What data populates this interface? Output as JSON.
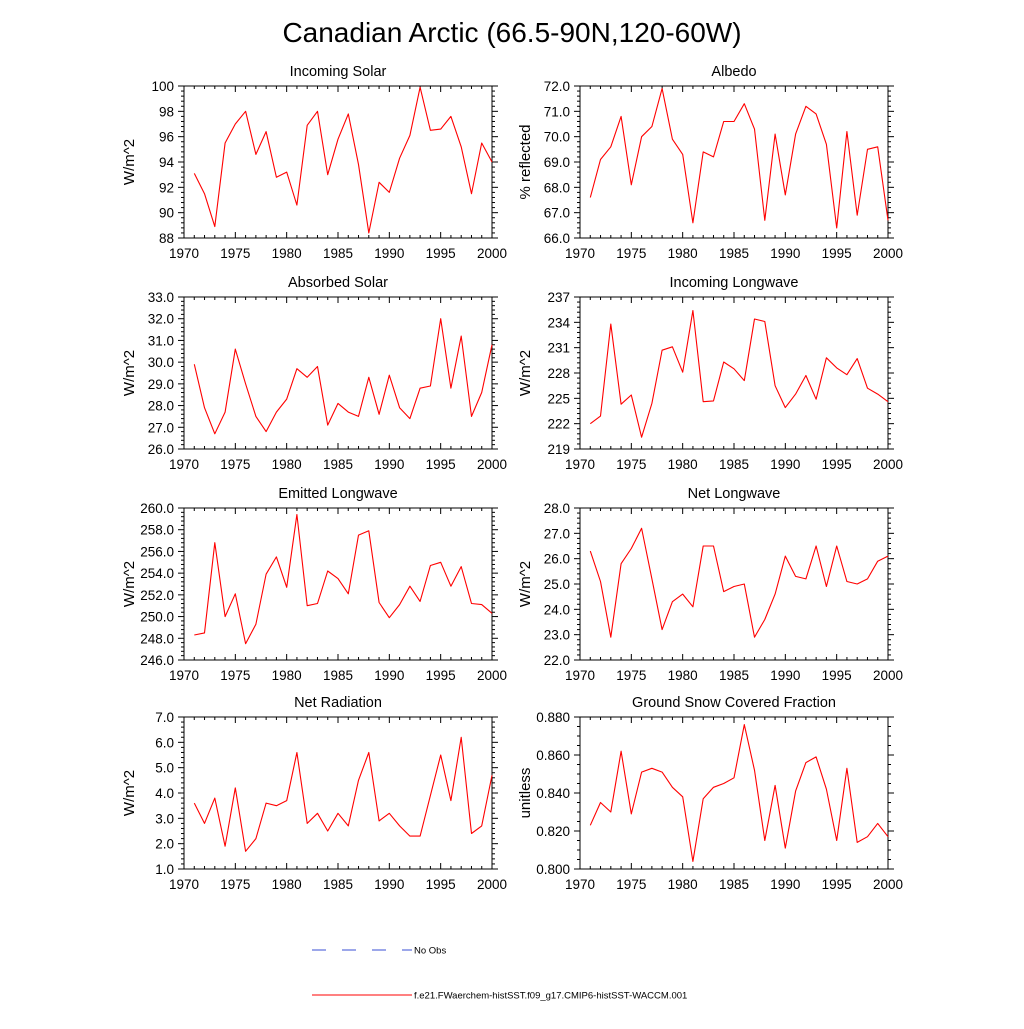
{
  "figure": {
    "title": "Canadian Arctic (66.5-90N,120-60W)",
    "legend": [
      {
        "label": "No Obs",
        "color": "#3a4fd6",
        "style": "dashed"
      },
      {
        "label": "f.e21.FWaerchem-histSST.f09_g17.CMIP6-histSST-WACCM.001",
        "color": "#ff0000",
        "style": "solid"
      }
    ]
  },
  "chart_data": [
    {
      "type": "line",
      "title": "Incoming Solar",
      "ylabel": "W/m^2",
      "xlim": [
        1970,
        2000
      ],
      "ylim": [
        88,
        100
      ],
      "xticks": [
        "1970",
        "1975",
        "1980",
        "1985",
        "1990",
        "1995",
        "2000"
      ],
      "yticks": [
        "88",
        "90",
        "92",
        "94",
        "96",
        "98",
        "100"
      ],
      "x": [
        1971,
        1972,
        1973,
        1974,
        1975,
        1976,
        1977,
        1978,
        1979,
        1980,
        1981,
        1982,
        1983,
        1984,
        1985,
        1986,
        1987,
        1988,
        1989,
        1990,
        1991,
        1992,
        1993,
        1994,
        1995,
        1996,
        1997,
        1998,
        1999,
        2000
      ],
      "series": [
        {
          "color": "#ff0000",
          "values": [
            93.1,
            91.5,
            88.9,
            95.5,
            97.0,
            98.0,
            94.6,
            96.4,
            92.8,
            93.2,
            90.6,
            96.9,
            98.0,
            93.0,
            95.8,
            97.8,
            93.8,
            88.4,
            92.4,
            91.6,
            94.3,
            96.1,
            99.9,
            96.5,
            96.6,
            97.6,
            95.2,
            91.5,
            95.5,
            94.0
          ]
        }
      ]
    },
    {
      "type": "line",
      "title": "Albedo",
      "ylabel": "% reflected",
      "xlim": [
        1970,
        2000
      ],
      "ylim": [
        66,
        72
      ],
      "xticks": [
        "1970",
        "1975",
        "1980",
        "1985",
        "1990",
        "1995",
        "2000"
      ],
      "yticks": [
        "66.0",
        "67.0",
        "68.0",
        "69.0",
        "70.0",
        "71.0",
        "72.0"
      ],
      "x": [
        1971,
        1972,
        1973,
        1974,
        1975,
        1976,
        1977,
        1978,
        1979,
        1980,
        1981,
        1982,
        1983,
        1984,
        1985,
        1986,
        1987,
        1988,
        1989,
        1990,
        1991,
        1992,
        1993,
        1994,
        1995,
        1996,
        1997,
        1998,
        1999,
        2000
      ],
      "series": [
        {
          "color": "#ff0000",
          "values": [
            67.6,
            69.1,
            69.6,
            70.8,
            68.1,
            70.0,
            70.4,
            71.9,
            69.9,
            69.3,
            66.6,
            69.4,
            69.2,
            70.6,
            70.6,
            71.3,
            70.3,
            66.7,
            70.1,
            67.7,
            70.1,
            71.2,
            70.9,
            69.7,
            66.4,
            70.2,
            66.9,
            69.5,
            69.6,
            66.7
          ]
        }
      ]
    },
    {
      "type": "line",
      "title": "Absorbed Solar",
      "ylabel": "W/m^2",
      "xlim": [
        1970,
        2000
      ],
      "ylim": [
        26,
        33
      ],
      "xticks": [
        "1970",
        "1975",
        "1980",
        "1985",
        "1990",
        "1995",
        "2000"
      ],
      "yticks": [
        "26.0",
        "27.0",
        "28.0",
        "29.0",
        "30.0",
        "31.0",
        "32.0",
        "33.0"
      ],
      "x": [
        1971,
        1972,
        1973,
        1974,
        1975,
        1976,
        1977,
        1978,
        1979,
        1980,
        1981,
        1982,
        1983,
        1984,
        1985,
        1986,
        1987,
        1988,
        1989,
        1990,
        1991,
        1992,
        1993,
        1994,
        1995,
        1996,
        1997,
        1998,
        1999,
        2000
      ],
      "series": [
        {
          "color": "#ff0000",
          "values": [
            29.9,
            27.9,
            26.7,
            27.7,
            30.6,
            29.0,
            27.5,
            26.8,
            27.7,
            28.3,
            29.7,
            29.3,
            29.8,
            27.1,
            28.1,
            27.7,
            27.5,
            29.3,
            27.6,
            29.4,
            27.9,
            27.4,
            28.8,
            28.9,
            32.0,
            28.8,
            31.2,
            27.5,
            28.6,
            30.8
          ]
        }
      ]
    },
    {
      "type": "line",
      "title": "Incoming Longwave",
      "ylabel": "W/m^2",
      "xlim": [
        1970,
        2000
      ],
      "ylim": [
        219,
        237
      ],
      "xticks": [
        "1970",
        "1975",
        "1980",
        "1985",
        "1990",
        "1995",
        "2000"
      ],
      "yticks": [
        "219",
        "222",
        "225",
        "228",
        "231",
        "234",
        "237"
      ],
      "x": [
        1971,
        1972,
        1973,
        1974,
        1975,
        1976,
        1977,
        1978,
        1979,
        1980,
        1981,
        1982,
        1983,
        1984,
        1985,
        1986,
        1987,
        1988,
        1989,
        1990,
        1991,
        1992,
        1993,
        1994,
        1995,
        1996,
        1997,
        1998,
        1999,
        2000
      ],
      "series": [
        {
          "color": "#ff0000",
          "values": [
            222.0,
            222.9,
            233.8,
            224.3,
            225.4,
            220.4,
            224.4,
            230.7,
            231.1,
            228.1,
            235.4,
            224.6,
            224.7,
            229.3,
            228.5,
            227.1,
            234.4,
            234.1,
            226.5,
            223.9,
            225.5,
            227.7,
            224.9,
            229.8,
            228.6,
            227.8,
            229.7,
            226.2,
            225.5,
            224.6
          ]
        }
      ]
    },
    {
      "type": "line",
      "title": "Emitted Longwave",
      "ylabel": "W/m^2",
      "xlim": [
        1970,
        2000
      ],
      "ylim": [
        246,
        260
      ],
      "xticks": [
        "1970",
        "1975",
        "1980",
        "1985",
        "1990",
        "1995",
        "2000"
      ],
      "yticks": [
        "246.0",
        "248.0",
        "250.0",
        "252.0",
        "254.0",
        "256.0",
        "258.0",
        "260.0"
      ],
      "x": [
        1971,
        1972,
        1973,
        1974,
        1975,
        1976,
        1977,
        1978,
        1979,
        1980,
        1981,
        1982,
        1983,
        1984,
        1985,
        1986,
        1987,
        1988,
        1989,
        1990,
        1991,
        1992,
        1993,
        1994,
        1995,
        1996,
        1997,
        1998,
        1999,
        2000
      ],
      "series": [
        {
          "color": "#ff0000",
          "values": [
            248.3,
            248.5,
            256.8,
            250.0,
            252.1,
            247.5,
            249.3,
            253.9,
            255.5,
            252.7,
            259.4,
            251.0,
            251.2,
            254.2,
            253.5,
            252.1,
            257.5,
            257.9,
            251.3,
            249.9,
            251.1,
            252.8,
            251.4,
            254.7,
            255.0,
            252.8,
            254.6,
            251.2,
            251.1,
            250.3
          ]
        }
      ]
    },
    {
      "type": "line",
      "title": "Net Longwave",
      "ylabel": "W/m^2",
      "xlim": [
        1970,
        2000
      ],
      "ylim": [
        22,
        28
      ],
      "xticks": [
        "1970",
        "1975",
        "1980",
        "1985",
        "1990",
        "1995",
        "2000"
      ],
      "yticks": [
        "22.0",
        "23.0",
        "24.0",
        "25.0",
        "26.0",
        "27.0",
        "28.0"
      ],
      "x": [
        1971,
        1972,
        1973,
        1974,
        1975,
        1976,
        1977,
        1978,
        1979,
        1980,
        1981,
        1982,
        1983,
        1984,
        1985,
        1986,
        1987,
        1988,
        1989,
        1990,
        1991,
        1992,
        1993,
        1994,
        1995,
        1996,
        1997,
        1998,
        1999,
        2000
      ],
      "series": [
        {
          "color": "#ff0000",
          "values": [
            26.3,
            25.1,
            22.9,
            25.8,
            26.4,
            27.2,
            25.2,
            23.2,
            24.3,
            24.6,
            24.1,
            26.5,
            26.5,
            24.7,
            24.9,
            25.0,
            22.9,
            23.6,
            24.6,
            26.1,
            25.3,
            25.2,
            26.5,
            24.9,
            26.5,
            25.1,
            25.0,
            25.2,
            25.9,
            26.1
          ]
        }
      ]
    },
    {
      "type": "line",
      "title": "Net Radiation",
      "ylabel": "W/m^2",
      "xlim": [
        1970,
        2000
      ],
      "ylim": [
        1,
        7
      ],
      "xticks": [
        "1970",
        "1975",
        "1980",
        "1985",
        "1990",
        "1995",
        "2000"
      ],
      "yticks": [
        "1.0",
        "2.0",
        "3.0",
        "4.0",
        "5.0",
        "6.0",
        "7.0"
      ],
      "x": [
        1971,
        1972,
        1973,
        1974,
        1975,
        1976,
        1977,
        1978,
        1979,
        1980,
        1981,
        1982,
        1983,
        1984,
        1985,
        1986,
        1987,
        1988,
        1989,
        1990,
        1991,
        1992,
        1993,
        1994,
        1995,
        1996,
        1997,
        1998,
        1999,
        2000
      ],
      "series": [
        {
          "color": "#ff0000",
          "values": [
            3.6,
            2.8,
            3.8,
            1.9,
            4.2,
            1.7,
            2.2,
            3.6,
            3.5,
            3.7,
            5.6,
            2.8,
            3.2,
            2.5,
            3.2,
            2.7,
            4.5,
            5.6,
            2.9,
            3.2,
            2.7,
            2.3,
            2.3,
            3.9,
            5.5,
            3.7,
            6.2,
            2.4,
            2.7,
            4.7
          ]
        }
      ]
    },
    {
      "type": "line",
      "title": "Ground Snow Covered Fraction",
      "ylabel": "unitless",
      "xlim": [
        1970,
        2000
      ],
      "ylim": [
        0.8,
        0.88
      ],
      "xticks": [
        "1970",
        "1975",
        "1980",
        "1985",
        "1990",
        "1995",
        "2000"
      ],
      "yticks": [
        "0.800",
        "0.820",
        "0.840",
        "0.860",
        "0.880"
      ],
      "x": [
        1971,
        1972,
        1973,
        1974,
        1975,
        1976,
        1977,
        1978,
        1979,
        1980,
        1981,
        1982,
        1983,
        1984,
        1985,
        1986,
        1987,
        1988,
        1989,
        1990,
        1991,
        1992,
        1993,
        1994,
        1995,
        1996,
        1997,
        1998,
        1999,
        2000
      ],
      "series": [
        {
          "color": "#ff0000",
          "values": [
            0.823,
            0.835,
            0.83,
            0.862,
            0.829,
            0.851,
            0.853,
            0.851,
            0.843,
            0.838,
            0.804,
            0.837,
            0.843,
            0.845,
            0.848,
            0.876,
            0.852,
            0.815,
            0.844,
            0.811,
            0.841,
            0.856,
            0.859,
            0.842,
            0.815,
            0.853,
            0.814,
            0.817,
            0.824,
            0.817
          ]
        }
      ]
    }
  ]
}
